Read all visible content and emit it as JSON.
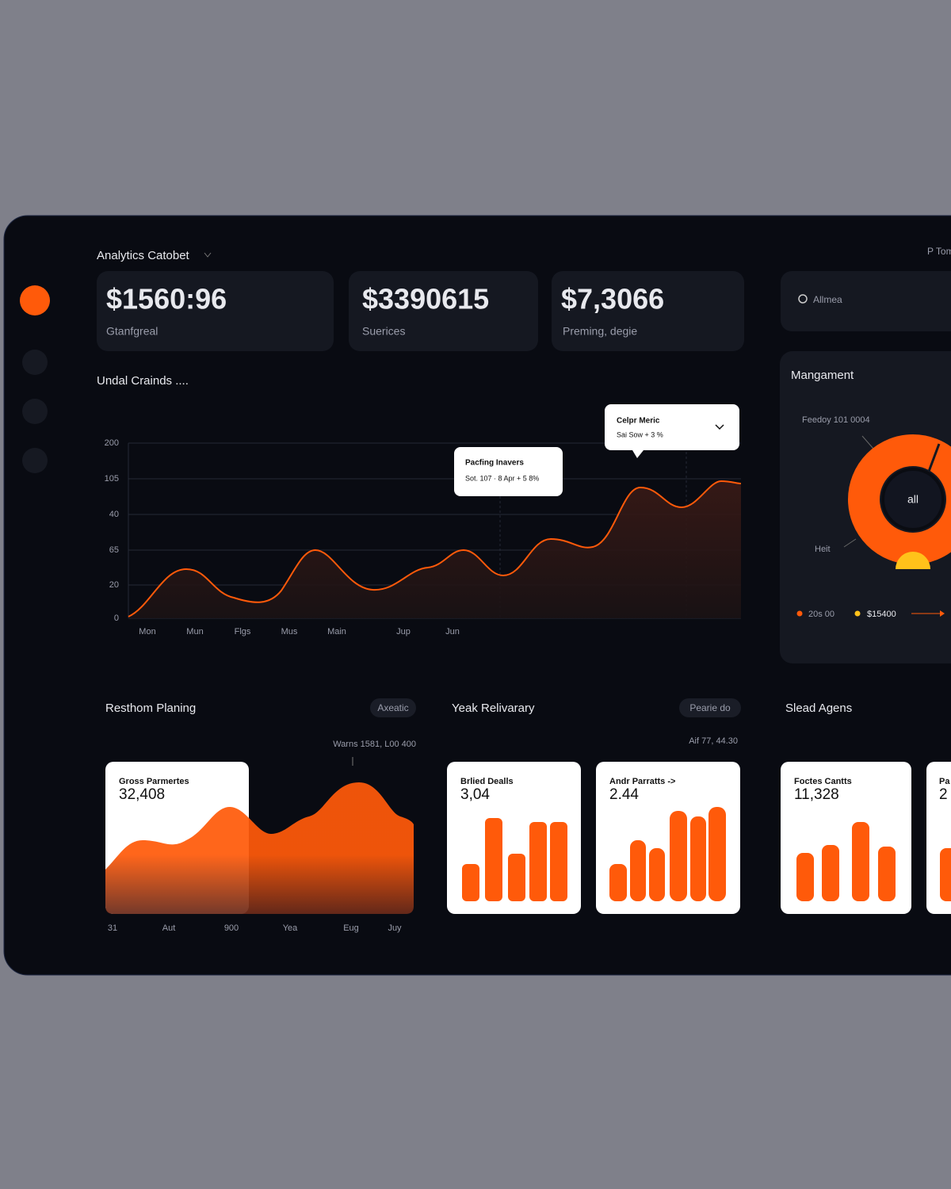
{
  "header": {
    "title": "Analytics Catobet",
    "user": "P Tom"
  },
  "kpis": [
    {
      "value": "$1560:96",
      "label": "Gtanfgreal"
    },
    {
      "value": "$3390615",
      "label": "Suerices"
    },
    {
      "value": "$7,3066",
      "label": "Preming, degie"
    }
  ],
  "search": {
    "placeholder": "Allmea"
  },
  "trend": {
    "title": "Undal Crainds ....",
    "y_labels": [
      "200",
      "105",
      "40",
      "65",
      "20",
      "0"
    ],
    "x_labels": [
      "Mon",
      "Mun",
      "Flgs",
      "Mus",
      "Main",
      "Jup",
      "Jun"
    ],
    "tooltips": [
      {
        "title": "Pacfing Inavers",
        "text": "Sot. 107 · 8 Apr + 5 8%"
      },
      {
        "title": "Celpr Meric",
        "text": "Sai Sow + 3 %"
      }
    ]
  },
  "management": {
    "title": "Mangament",
    "callouts": [
      "Feedoy 101 0004",
      "Heit"
    ],
    "center": "all",
    "legend": [
      "20s 00",
      "$15400"
    ]
  },
  "planning": {
    "title": "Resthom Planing",
    "tag": "Axeatic",
    "note": "Warns 1581, L00 400",
    "card": {
      "title": "Gross Parmertes",
      "value": "32,408"
    },
    "x_labels": [
      "31",
      "Aut",
      "900",
      "Yea",
      "Eug",
      "Juy"
    ]
  },
  "delivery": {
    "title": "Yeak Relivarary",
    "tag": "Pearie do",
    "note": "Aif 77, 44.30",
    "cards": [
      {
        "title": "Brlied Dealls",
        "value": "3,04"
      },
      {
        "title": "Andr Parratts ->",
        "value": "2.44"
      }
    ]
  },
  "agents": {
    "title": "Slead Agens",
    "cards": [
      {
        "title": "Foctes Cantts",
        "value": "11,328"
      },
      {
        "title": "Pa",
        "value": "2"
      }
    ]
  }
}
